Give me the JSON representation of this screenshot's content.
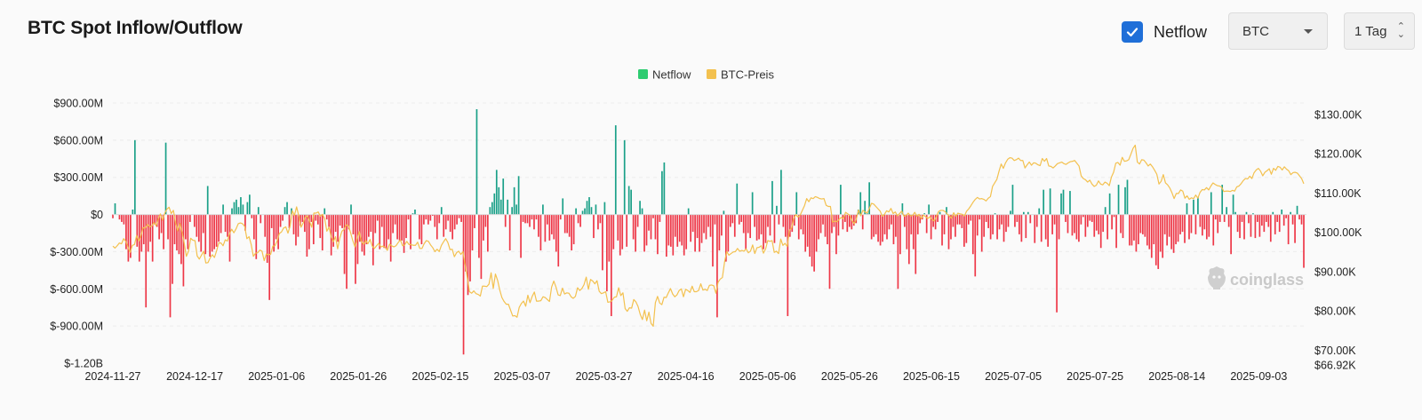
{
  "header": {
    "title": "BTC Spot Inflow/Outflow",
    "netflow_label": "Netflow",
    "netflow_checked": true,
    "coin_select": "BTC",
    "interval_select": "1 Tag"
  },
  "watermark": "coinglass",
  "colors": {
    "positive": "#1aa088",
    "negative": "#ee3747",
    "price_line": "#f3c14f",
    "legend_netflow": "#2ecc71",
    "legend_price": "#f3c14f",
    "checkbox": "#1f6fd8"
  },
  "chart_data": {
    "type": "bar",
    "legend": [
      "Netflow",
      "BTC-Preis"
    ],
    "legend_position": "top-center",
    "y_left_labels": [
      "$900.00M",
      "$600.00M",
      "$300.00M",
      "$0",
      "$-300.00M",
      "$-600.00M",
      "$-900.00M",
      "$-1.20B"
    ],
    "y_left_range": [
      -1200,
      900
    ],
    "y_left_unit": "M USD",
    "y_right_labels": [
      "$130.00K",
      "$120.00K",
      "$110.00K",
      "$100.00K",
      "$90.00K",
      "$80.00K",
      "$70.00K",
      "$66.92K"
    ],
    "y_right_range": [
      66.92,
      130
    ],
    "y_right_unit": "K USD",
    "x_labels": [
      "2024-11-27",
      "2024-12-17",
      "2025-01-06",
      "2025-01-26",
      "2025-02-15",
      "2025-03-07",
      "2025-03-27",
      "2025-04-16",
      "2025-05-06",
      "2025-05-26",
      "2025-06-15",
      "2025-07-05",
      "2025-07-25",
      "2025-08-14",
      "2025-09-03"
    ],
    "x_range": [
      "2024-11-27",
      "2025-09-14"
    ],
    "grid": "horizontal dashed",
    "series": [
      {
        "name": "Netflow",
        "type": "bar",
        "values": [
          -30,
          90,
          0,
          -40,
          -60,
          -80,
          -280,
          -380,
          -350,
          40,
          600,
          -260,
          -380,
          -300,
          -240,
          -750,
          -300,
          -220,
          -380,
          -80,
          -100,
          -200,
          -150,
          -280,
          580,
          -200,
          -830,
          -560,
          -240,
          -290,
          -320,
          -400,
          -580,
          -200,
          -280,
          -60,
          0,
          -100,
          -180,
          -220,
          -300,
          -150,
          -320,
          230,
          -340,
          -300,
          -280,
          -260,
          -220,
          -150,
          80,
          -140,
          -180,
          -380,
          50,
          100,
          120,
          60,
          140,
          80,
          -130,
          100,
          160,
          -30,
          -200,
          -360,
          60,
          -70,
          0,
          -180,
          -390,
          -690,
          -110,
          -300,
          -200,
          -280,
          -100,
          -50,
          60,
          100,
          -110,
          50,
          -160,
          -250,
          -180,
          -90,
          -60,
          -140,
          -340,
          -280,
          -60,
          -240,
          -50,
          -80,
          -190,
          -290,
          50,
          -40,
          -100,
          -330,
          -260,
          -140,
          -220,
          -90,
          -110,
          -480,
          -600,
          -120,
          80,
          -160,
          -560,
          -400,
          -220,
          -300,
          -330,
          -240,
          -180,
          -140,
          -410,
          -150,
          -50,
          -280,
          -100,
          -270,
          -280,
          -200,
          -380,
          -150,
          -80,
          -200,
          -210,
          -210,
          -310,
          -190,
          -40,
          -280,
          10,
          40,
          0,
          -200,
          -240,
          -80,
          -40,
          -80,
          -50,
          -10,
          -100,
          -200,
          -70,
          60,
          -180,
          -120,
          -50,
          -140,
          -200,
          -120,
          -80,
          -30,
          -60,
          -1130,
          -460,
          -650,
          -540,
          -290,
          -110,
          850,
          -350,
          -520,
          -210,
          -100,
          -300,
          60,
          100,
          170,
          360,
          220,
          120,
          290,
          -100,
          120,
          -290,
          60,
          220,
          80,
          310,
          -350,
          -60,
          -70,
          -70,
          -100,
          -40,
          -120,
          -40,
          -180,
          -290,
          80,
          -220,
          -80,
          -210,
          -160,
          -200,
          -300,
          -420,
          -40,
          130,
          -150,
          -150,
          -180,
          -290,
          -240,
          50,
          -70,
          -100,
          30,
          50,
          110,
          140,
          60,
          -190,
          80,
          -120,
          -70,
          -450,
          100,
          -620,
          -380,
          -820,
          -280,
          720,
          -210,
          -330,
          -280,
          600,
          -260,
          230,
          200,
          -200,
          -300,
          -100,
          110,
          50,
          -300,
          -250,
          -130,
          -200,
          -30,
          -200,
          -320,
          -60,
          350,
          420,
          -340,
          -250,
          -260,
          -330,
          -180,
          -260,
          -220,
          -250,
          -330,
          -280,
          50,
          -220,
          -140,
          -300,
          -190,
          -300,
          -230,
          -150,
          -200,
          -100,
          -180,
          -420,
          -80,
          -830,
          -290,
          -170,
          30,
          -380,
          -300,
          -100,
          -70,
          -180,
          250,
          -80,
          -60,
          -150,
          -280,
          -150,
          -190,
          180,
          -100,
          -210,
          -200,
          -160,
          -280,
          -230,
          -100,
          -170,
          270,
          -230,
          70,
          -80,
          360,
          -100,
          -180,
          -820,
          -180,
          -140,
          -90,
          180,
          -200,
          -120,
          -160,
          -300,
          -260,
          -340,
          -420,
          -460,
          -300,
          -200,
          -150,
          -80,
          -180,
          -240,
          -600,
          -150,
          -100,
          -320,
          -170,
          240,
          -120,
          -60,
          -140,
          -100,
          -120,
          -90,
          -70,
          40,
          180,
          -120,
          110,
          20,
          260,
          -200,
          -180,
          -160,
          -220,
          -250,
          -220,
          -160,
          -200,
          -120,
          -80,
          -240,
          -180,
          -600,
          -320,
          90,
          -100,
          -280,
          -400,
          -160,
          -280,
          -480,
          -160,
          -70,
          -40,
          10,
          -150,
          80,
          -200,
          -100,
          -120,
          -60,
          20,
          -250,
          -160,
          60,
          -280,
          -200,
          -100,
          -180,
          -80,
          -80,
          -110,
          -260,
          -230,
          -80,
          -50,
          -320,
          -500,
          -170,
          -40,
          -300,
          -180,
          -60,
          -110,
          -200,
          -160,
          10,
          -200,
          -120,
          -80,
          -220,
          -140,
          -100,
          30,
          240,
          -100,
          -60,
          -160,
          -220,
          20,
          -190,
          20,
          -70,
          0,
          -230,
          -100,
          50,
          -220,
          200,
          -200,
          -260,
          210,
          -160,
          -80,
          -790,
          -200,
          170,
          200,
          -60,
          -150,
          190,
          -170,
          -150,
          -200,
          -220,
          -80,
          -20,
          -180,
          -100,
          -50,
          -60,
          -180,
          -130,
          -160,
          -270,
          -140,
          60,
          -200,
          170,
          -120,
          -20,
          -270,
          240,
          -150,
          -190,
          220,
          280,
          -250,
          -250,
          -210,
          -300,
          -240,
          -150,
          -160,
          -180,
          -250,
          -280,
          -350,
          -240,
          -410,
          -440,
          -300,
          -350,
          -160,
          -250,
          -180,
          -280,
          -310,
          -240,
          -220,
          -160,
          -140,
          -230,
          90,
          -200,
          -150,
          120,
          -160,
          140,
          -100,
          -170,
          -120,
          -200,
          -180,
          180,
          -250,
          -40,
          -150,
          -60,
          240,
          -60,
          60,
          -100,
          -320,
          160,
          20,
          -140,
          -190,
          -60,
          -200,
          20,
          -70,
          -180,
          10,
          -190,
          -60,
          -180,
          -90,
          -140,
          -60,
          -100,
          -220,
          20,
          -160,
          -60,
          -140,
          40,
          -90,
          -30,
          -240,
          20,
          -80,
          -230,
          70,
          -40,
          -80,
          -430
        ]
      },
      {
        "name": "BTC-Preis",
        "type": "line",
        "values": [
          96.5,
          96,
          96.6,
          97.3,
          97.1,
          98.4,
          97.7,
          96.2,
          94.9,
          96.7,
          96.9,
          99.2,
          97.8,
          99.2,
          101.2,
          101.1,
          102,
          101.4,
          101.6,
          102.5,
          101.7,
          103.4,
          104.7,
          103.1,
          104.9,
          105.9,
          106.4,
          104.8,
          105.6,
          102.5,
          100.4,
          102.3,
          100.1,
          97.3,
          93.9,
          95.2,
          98.5,
          98,
          97.9,
          94,
          93.2,
          94.2,
          95.2,
          92.2,
          92.3,
          93.5,
          94.3,
          93.6,
          95.3,
          97.3,
          97.3,
          96.6,
          98.1,
          97.8,
          99.7,
          100.8,
          99.9,
          100.9,
          102.2,
          102.4,
          102.2,
          101.5,
          98.4,
          98.9,
          96.9,
          93.9,
          94.7,
          94.8,
          95.5,
          95.2,
          92.8,
          94.5,
          94.3,
          94.4,
          96.5,
          96.6,
          97.8,
          99.7,
          100.1,
          101.1,
          101.4,
          99.8,
          101.6,
          105.5,
          104.3,
          106.5,
          104.2,
          101.3,
          102.3,
          103.9,
          104.2,
          102.8,
          101.3,
          104.9,
          104.9,
          105.2,
          104.1,
          104.6,
          103.5,
          100.3,
          101.3,
          98.9,
          97.6,
          98.9,
          95.8,
          98.6,
          100.3,
          100.8,
          101.9,
          101.7,
          99.9,
          97.9,
          96.3,
          98.3,
          100.2,
          97.7,
          97,
          97.9,
          97.1,
          98.2,
          96.5,
          95.9,
          96.6,
          97.2,
          96.3,
          96.5,
          96.2,
          95.4,
          97,
          96.6,
          96.3,
          96.6,
          97.4,
          98.1,
          96.6,
          96.8,
          97.7,
          96.9,
          96.9,
          96.7,
          96.7,
          97.5,
          95.9,
          95.9,
          97.1,
          97.9,
          97.7,
          96.8,
          96.1,
          95.1,
          95.7,
          95.1,
          96.7,
          97.6,
          98.4,
          97.4,
          95.6,
          95.7,
          93.8,
          94.8,
          95.2,
          94.4,
          95.1,
          91.7,
          88.4,
          84.9,
          84.5,
          85.1,
          84.4,
          84.2,
          83.8,
          86.3,
          86.3,
          86.2,
          86.8,
          89.7,
          85.7,
          89.4,
          87.8,
          85.3,
          83.4,
          82.4,
          81.7,
          81.7,
          80.2,
          78.7,
          78.8,
          78.4,
          80.9,
          81.9,
          82.5,
          81.2,
          84,
          82.1,
          83.7,
          84.8,
          82.5,
          82.5,
          82.6,
          83.6,
          83.4,
          82.9,
          82.4,
          86.1,
          87.6,
          86.1,
          84.1,
          83.9,
          85.8,
          84.3,
          84.6,
          84.5,
          83.6,
          83.2,
          83.7,
          85.9,
          85.2,
          85.7,
          86.7,
          88.6,
          85.5,
          88,
          87.6,
          86.9,
          87.7,
          85,
          84.4,
          84.6,
          84.9,
          82.2,
          82.3,
          82.7,
          83.5,
          83.6,
          85.9,
          83.9,
          84.6,
          80.6,
          79.9,
          80.8,
          80.7,
          82.9,
          82.3,
          81.1,
          79.1,
          77.8,
          80.2,
          77.5,
          79.7,
          76.8,
          76.1,
          82.1,
          83.7,
          82,
          81.6,
          83.5,
          83.4,
          84.6,
          85.7,
          84.3,
          83.6,
          84.1,
          85.2,
          85.6,
          83.6,
          85.5,
          85.2,
          84.7,
          86.3,
          84.9,
          84.9,
          85.2,
          86.9,
          85.3,
          85.5,
          85.2,
          86.5,
          86.6,
          86.4,
          84.5,
          87.3,
          88.1,
          88.5,
          92.4,
          95.1,
          94.2,
          94.6,
          95,
          95.1,
          95.9,
          95.2,
          95.4,
          95.2,
          95.8,
          94.8,
          95.2,
          96.8,
          94.6,
          96.1,
          96.2,
          96.6,
          94.7,
          95.8,
          97.9,
          97.7,
          97.9,
          94.9,
          95.2,
          94.6,
          98.3,
          96.7,
          97.2,
          96.4,
          100.5,
          101.1,
          103.6,
          104.5,
          103.9,
          104.4,
          105.6,
          106.8,
          108.6,
          107.8,
          108.8,
          108.6,
          109.1,
          108.9,
          108.6,
          108.5,
          108.6,
          106.9,
          106.6,
          106.6,
          102.6,
          102.9,
          102.7,
          103.3,
          103.8,
          103.5,
          105.1,
          104.7,
          104.3,
          103,
          102.2,
          103.5,
          105.7,
          104.2,
          105.6,
          105.2,
          104.9,
          106.1,
          107.4,
          107.2,
          106.6,
          106,
          105.4,
          104.1,
          104.6,
          105.5,
          105.2,
          106.1,
          104.8,
          105.2,
          104.2,
          104.8,
          105.4,
          104.1,
          104.3,
          104.9,
          104.2,
          104.3,
          105.1,
          104.1,
          104.6,
          103.5,
          104.4,
          104,
          103.5,
          104,
          103.3,
          102.9,
          104,
          105.3,
          105.6,
          105.6,
          105.3,
          104.7,
          104.2,
          103.6,
          105,
          104.1,
          104.9,
          104.7,
          104.6,
          104.2,
          105.4,
          106,
          106.8,
          107.7,
          108.4,
          108.9,
          108.5,
          108.6,
          108.4,
          108,
          108.7,
          109.1,
          111.7,
          112.6,
          113.5,
          115.6,
          117.4,
          116.3,
          117.7,
          118.6,
          119,
          118.9,
          118.3,
          118.5,
          118.9,
          118.3,
          118.3,
          116.4,
          117.2,
          117.9,
          117.1,
          117.7,
          117.6,
          117.2,
          117,
          118.8,
          118.1,
          118.8,
          116.9,
          116.8,
          116.4,
          116.9,
          117.5,
          117.7,
          117.9,
          117.5,
          117.3,
          117.7,
          118,
          118.1,
          118.3,
          117.6,
          116.9,
          114.4,
          113.7,
          113.4,
          112.8,
          113.3,
          112.3,
          111.7,
          112,
          113.1,
          112.3,
          112.1,
          112.8,
          112.5,
          111.9,
          114.1,
          115.3,
          117.6,
          117.8,
          117.1,
          119.1,
          118.1,
          118.2,
          118.5,
          119.9,
          121.4,
          122.2,
          117.9,
          117.4,
          118.5,
          118.4,
          117.7,
          116.9,
          117.4,
          116.7,
          115.8,
          114.8,
          112.3,
          113,
          114.7,
          112.6,
          112.1,
          111.3,
          110.1,
          108.6,
          109.9,
          109.9,
          110.8,
          110.5,
          108.7,
          109.3,
          108.4,
          108.8,
          108.6,
          109.5,
          108.7,
          110.2,
          110.9,
          110.8,
          111.4,
          110.8,
          111.8,
          112.6,
          112.2,
          111.9,
          111.8,
          111.5,
          110.4,
          110.5,
          110.5,
          110.4,
          110.7,
          110.5,
          111.6,
          111.8,
          112.4,
          113.2,
          113.7,
          113.6,
          114.3,
          113.7,
          115.2,
          115.9,
          116.3,
          115.6,
          114.4,
          115.3,
          115.7,
          116.2,
          114.8,
          116.3,
          115.8,
          116.8,
          116.6,
          115.9,
          116.7,
          116.1,
          115.7,
          114.7,
          115.2,
          115.3,
          115.1,
          114.4,
          113.7,
          112.4
        ]
      }
    ]
  }
}
